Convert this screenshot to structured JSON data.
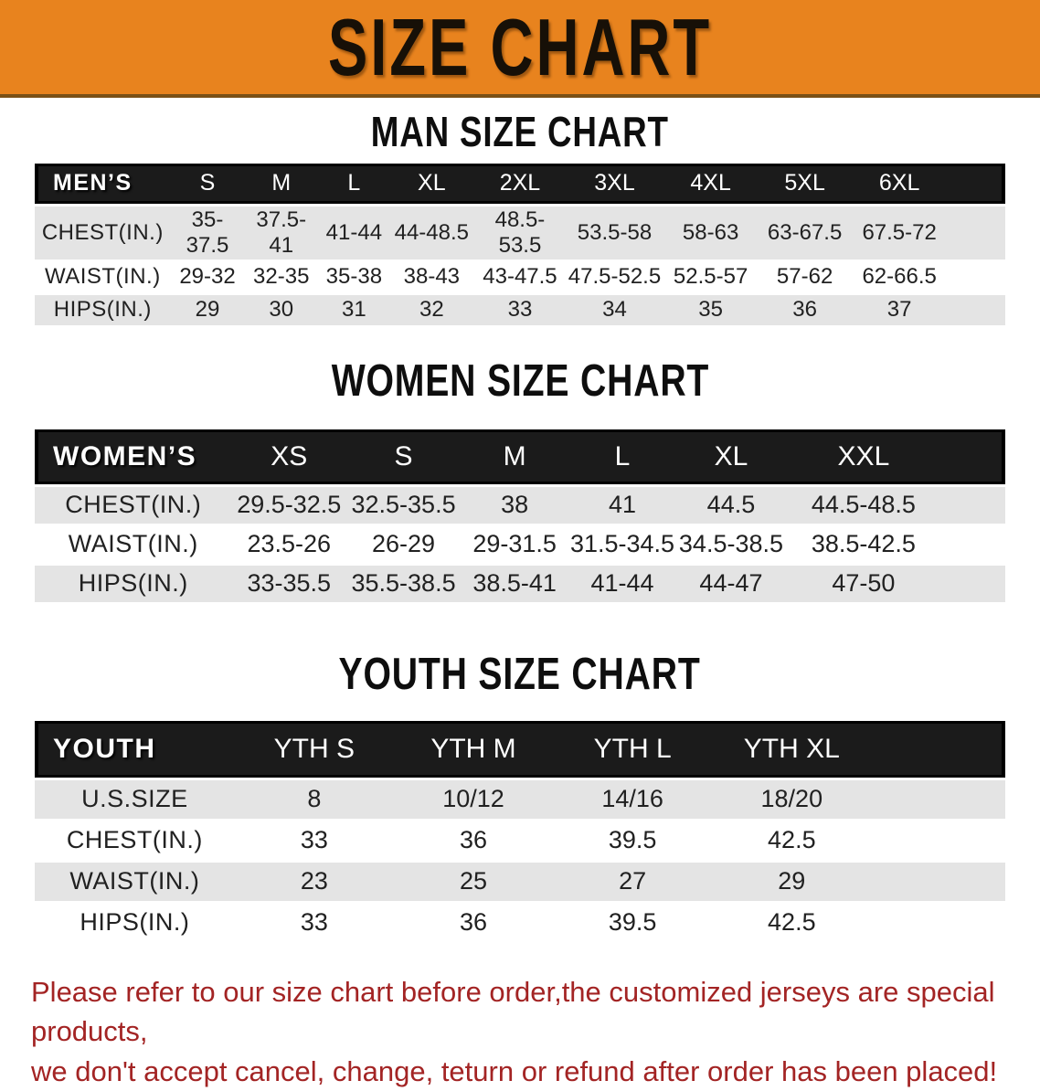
{
  "banner": {
    "title": "SIZE CHART",
    "bg_color": "#e8831e"
  },
  "sections": [
    {
      "heading": "MAN SIZE CHART",
      "header_label": "MEN’S",
      "columns": [
        "S",
        "M",
        "L",
        "XL",
        "2XL",
        "3XL",
        "4XL",
        "5XL",
        "6XL"
      ],
      "rows": [
        {
          "label": "CHEST(IN.)",
          "values": [
            "35-37.5",
            "37.5-41",
            "41-44",
            "44-48.5",
            "48.5-53.5",
            "53.5-58",
            "58-63",
            "63-67.5",
            "67.5-72"
          ]
        },
        {
          "label": "WAIST(IN.)",
          "values": [
            "29-32",
            "32-35",
            "35-38",
            "38-43",
            "43-47.5",
            "47.5-52.5",
            "52.5-57",
            "57-62",
            "62-66.5"
          ]
        },
        {
          "label": "HIPS(IN.)",
          "values": [
            "29",
            "30",
            "31",
            "32",
            "33",
            "34",
            "35",
            "36",
            "37"
          ]
        }
      ]
    },
    {
      "heading": "WOMEN SIZE CHART",
      "header_label": "WOMEN’S",
      "columns": [
        "XS",
        "S",
        "M",
        "L",
        "XL",
        "XXL"
      ],
      "rows": [
        {
          "label": "CHEST(IN.)",
          "values": [
            "29.5-32.5",
            "32.5-35.5",
            "38",
            "41",
            "44.5",
            "44.5-48.5"
          ]
        },
        {
          "label": "WAIST(IN.)",
          "values": [
            "23.5-26",
            "26-29",
            "29-31.5",
            "31.5-34.5",
            "34.5-38.5",
            "38.5-42.5"
          ]
        },
        {
          "label": "HIPS(IN.)",
          "values": [
            "33-35.5",
            "35.5-38.5",
            "38.5-41",
            "41-44",
            "44-47",
            "47-50"
          ]
        }
      ]
    },
    {
      "heading": "YOUTH SIZE CHART",
      "header_label": "YOUTH",
      "columns": [
        "YTH S",
        "YTH M",
        "YTH L",
        "YTH XL"
      ],
      "rows": [
        {
          "label": "U.S.SIZE",
          "values": [
            "8",
            "10/12",
            "14/16",
            "18/20"
          ]
        },
        {
          "label": "CHEST(IN.)",
          "values": [
            "33",
            "36",
            "39.5",
            "42.5"
          ]
        },
        {
          "label": "WAIST(IN.)",
          "values": [
            "23",
            "25",
            "27",
            "29"
          ]
        },
        {
          "label": "HIPS(IN.)",
          "values": [
            "33",
            "36",
            "39.5",
            "42.5"
          ]
        }
      ]
    }
  ],
  "disclaimer": {
    "line1": "Please refer to our size chart before order,the customized jerseys are special products,",
    "line2": "we don't accept cancel, change, teturn or refund after order has been placed!",
    "color": "#a32424"
  }
}
